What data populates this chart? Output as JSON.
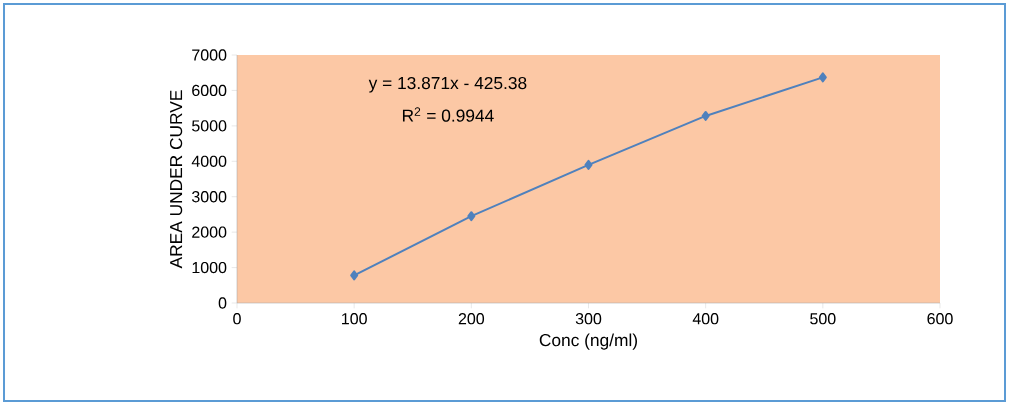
{
  "chart_data": {
    "type": "line",
    "xlabel": "Conc (ng/ml)",
    "ylabel": "AREA UNDER CURVE",
    "x": [
      100,
      200,
      300,
      400,
      500
    ],
    "series": [
      {
        "color": "#4f81bd",
        "values": [
          780,
          2450,
          3900,
          5280,
          6370
        ]
      }
    ],
    "xlim": [
      0,
      600
    ],
    "xticks": [
      0,
      100,
      200,
      300,
      400,
      500,
      600
    ],
    "ylim": [
      0,
      7000
    ],
    "yticks": [
      0,
      1000,
      2000,
      3000,
      4000,
      5000,
      6000,
      7000
    ],
    "marker": "diamond",
    "line_style": "solid",
    "grid": false,
    "annotations": [
      "y = 13.871x - 425.38",
      "R$^{2}$ = 0.9944"
    ]
  }
}
